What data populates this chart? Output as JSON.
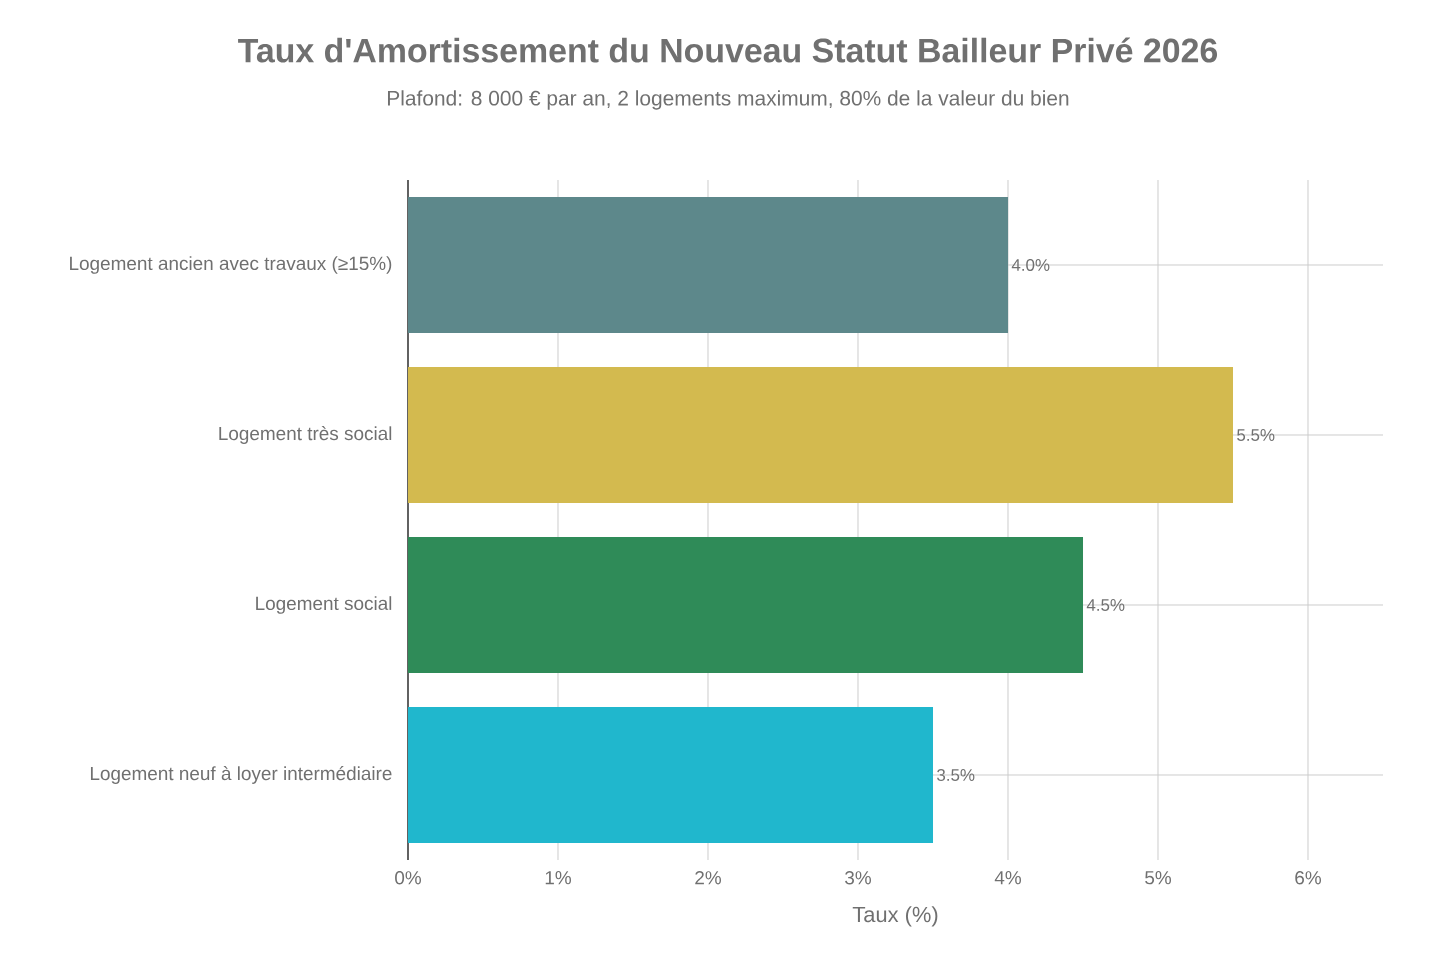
{
  "chart_data": {
    "type": "bar",
    "orientation": "horizontal",
    "title": "Taux d'Amortissement du Nouveau Statut Bailleur Privé 2026",
    "subtitle": "Plafond: 8 000 € par an, 2 logements maximum, 80% de la valeur du bien",
    "xlabel": "Taux (%)",
    "categories": [
      "Logement ancien avec travaux (≥15%)",
      "Logement très social",
      "Logement social",
      "Logement neuf à loyer intermédiaire"
    ],
    "values": [
      4.0,
      5.5,
      4.5,
      3.5
    ],
    "value_labels": [
      "4.0%",
      "5.5%",
      "4.5%",
      "3.5%"
    ],
    "colors": [
      "#5d888b",
      "#d3ba4f",
      "#2f8b58",
      "#20b7cd"
    ],
    "xlim": [
      0,
      6.5
    ],
    "xticks": [
      {
        "value": 0,
        "label": "0%"
      },
      {
        "value": 1,
        "label": "1%"
      },
      {
        "value": 2,
        "label": "2%"
      },
      {
        "value": 3,
        "label": "3%"
      },
      {
        "value": 4,
        "label": "4%"
      },
      {
        "value": 5,
        "label": "5%"
      },
      {
        "value": 6,
        "label": "6%"
      }
    ],
    "grid": true
  }
}
